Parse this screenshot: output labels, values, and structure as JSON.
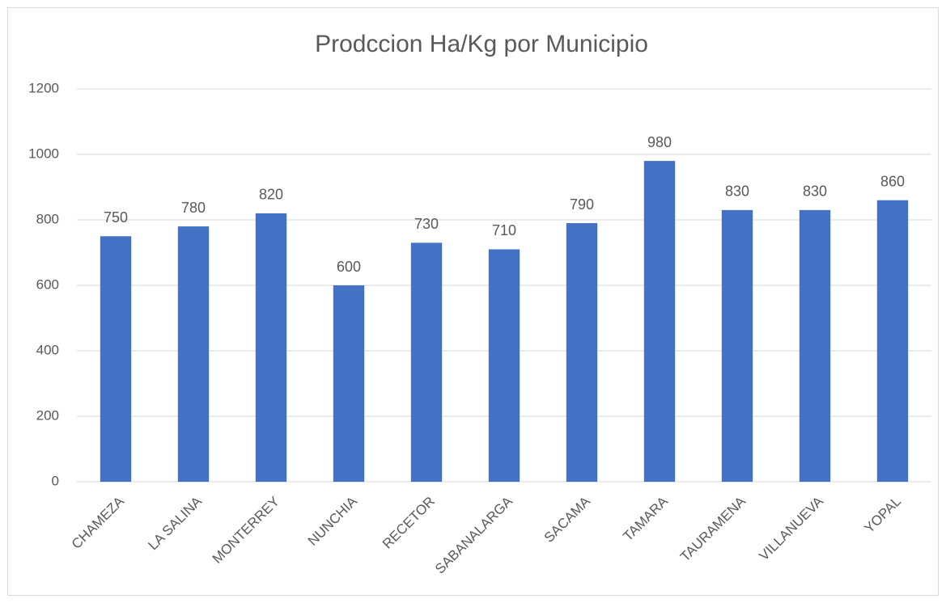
{
  "chart_data": {
    "type": "bar",
    "title": "Prodccion Ha/Kg por Municipio",
    "categories": [
      "CHAMEZA",
      "LA SALINA",
      "MONTERREY",
      "NUNCHIA",
      "RECETOR",
      "SABANALARGA",
      "SACAMA",
      "TAMARA",
      "TAURAMENA",
      "VILLANUEVA",
      "YOPAL"
    ],
    "values": [
      750,
      780,
      820,
      600,
      730,
      710,
      790,
      980,
      830,
      830,
      860
    ],
    "color": "#4472c4",
    "ylim": [
      0,
      1200
    ],
    "yticks": [
      0,
      200,
      400,
      600,
      800,
      1000,
      1200
    ],
    "grid": true
  }
}
